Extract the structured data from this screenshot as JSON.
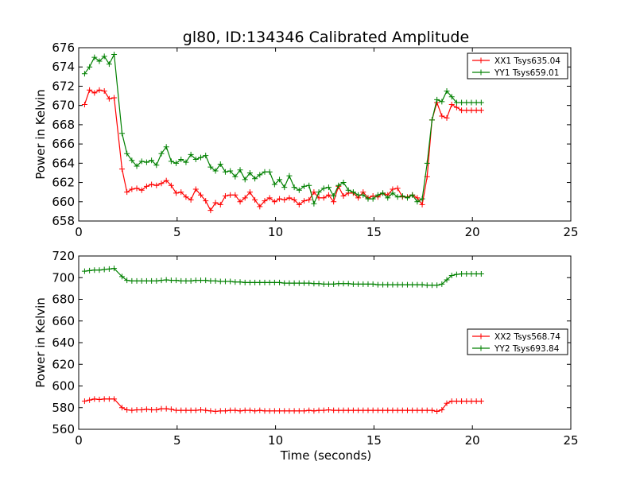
{
  "chart_data": [
    {
      "type": "line",
      "title": "gl80, ID:134346 Calibrated Amplitude",
      "xlabel": "",
      "ylabel": "Power in Kelvin",
      "xlim": [
        0,
        25
      ],
      "ylim": [
        658,
        676
      ],
      "xticks": [
        "0",
        "5",
        "10",
        "15",
        "20",
        "25"
      ],
      "yticks": [
        "658",
        "660",
        "662",
        "664",
        "666",
        "668",
        "670",
        "672",
        "674",
        "676"
      ],
      "legend_position": "top-right",
      "series": [
        {
          "name": "XX1 Tsys635.04",
          "color": "#ff0000",
          "x": [
            0.3,
            0.55,
            0.8,
            1.05,
            1.3,
            1.55,
            1.8,
            2.2,
            2.45,
            2.7,
            2.95,
            3.2,
            3.45,
            3.7,
            3.95,
            4.2,
            4.45,
            4.7,
            4.95,
            5.2,
            5.45,
            5.7,
            5.95,
            6.2,
            6.45,
            6.7,
            6.95,
            7.2,
            7.45,
            7.7,
            7.95,
            8.2,
            8.45,
            8.7,
            8.95,
            9.2,
            9.45,
            9.7,
            9.95,
            10.2,
            10.45,
            10.7,
            10.95,
            11.2,
            11.45,
            11.7,
            11.95,
            12.2,
            12.45,
            12.7,
            12.95,
            13.2,
            13.45,
            13.7,
            13.95,
            14.2,
            14.45,
            14.7,
            14.95,
            15.2,
            15.45,
            15.7,
            15.95,
            16.2,
            16.45,
            16.7,
            16.95,
            17.2,
            17.45,
            17.7,
            17.95,
            18.2,
            18.45,
            18.7,
            18.95,
            19.2,
            19.45,
            19.7,
            19.95,
            20.2,
            20.45
          ],
          "y": [
            670.1,
            671.6,
            671.3,
            671.6,
            671.5,
            670.7,
            670.8,
            663.4,
            661.0,
            661.3,
            661.4,
            661.2,
            661.6,
            661.8,
            661.7,
            661.9,
            662.2,
            661.7,
            660.9,
            661.0,
            660.5,
            660.2,
            661.3,
            660.7,
            660.1,
            659.1,
            659.9,
            659.7,
            660.6,
            660.7,
            660.7,
            660.0,
            660.4,
            661.0,
            660.2,
            659.5,
            660.1,
            660.4,
            660.0,
            660.3,
            660.2,
            660.4,
            660.2,
            659.7,
            660.1,
            660.2,
            661.0,
            660.4,
            660.4,
            660.7,
            660.0,
            661.6,
            660.6,
            660.9,
            660.9,
            660.4,
            661.0,
            660.4,
            660.6,
            660.5,
            660.9,
            660.7,
            661.3,
            661.4,
            660.5,
            660.5,
            660.7,
            660.4,
            659.7,
            662.6,
            668.5,
            670.3,
            668.9,
            668.7,
            670.1,
            669.8,
            669.5,
            669.5,
            669.5,
            669.5,
            669.5
          ]
        },
        {
          "name": "YY1 Tsys659.01",
          "color": "#008000",
          "x": [
            0.3,
            0.55,
            0.8,
            1.05,
            1.3,
            1.55,
            1.8,
            2.2,
            2.45,
            2.7,
            2.95,
            3.2,
            3.45,
            3.7,
            3.95,
            4.2,
            4.45,
            4.7,
            4.95,
            5.2,
            5.45,
            5.7,
            5.95,
            6.2,
            6.45,
            6.7,
            6.95,
            7.2,
            7.45,
            7.7,
            7.95,
            8.2,
            8.45,
            8.7,
            8.95,
            9.2,
            9.45,
            9.7,
            9.95,
            10.2,
            10.45,
            10.7,
            10.95,
            11.2,
            11.45,
            11.7,
            11.95,
            12.2,
            12.45,
            12.7,
            12.95,
            13.2,
            13.45,
            13.7,
            13.95,
            14.2,
            14.45,
            14.7,
            14.95,
            15.2,
            15.45,
            15.7,
            15.95,
            16.2,
            16.45,
            16.7,
            16.95,
            17.2,
            17.45,
            17.7,
            17.95,
            18.2,
            18.45,
            18.7,
            18.95,
            19.2,
            19.45,
            19.7,
            19.95,
            20.2,
            20.45
          ],
          "y": [
            673.3,
            674.0,
            675.0,
            674.6,
            675.1,
            674.3,
            675.3,
            667.1,
            665.0,
            664.3,
            663.7,
            664.2,
            664.1,
            664.3,
            663.8,
            665.0,
            665.7,
            664.2,
            664.0,
            664.4,
            664.1,
            664.9,
            664.4,
            664.6,
            664.8,
            663.6,
            663.2,
            663.9,
            663.1,
            663.2,
            662.6,
            663.3,
            662.3,
            663.0,
            662.4,
            662.8,
            663.1,
            663.1,
            661.8,
            662.3,
            661.5,
            662.7,
            661.5,
            661.2,
            661.6,
            661.7,
            659.8,
            661.0,
            661.4,
            661.5,
            660.6,
            661.7,
            662.0,
            661.2,
            661.0,
            660.7,
            660.7,
            660.3,
            660.3,
            660.7,
            660.9,
            660.4,
            660.9,
            660.5,
            660.6,
            660.4,
            660.7,
            660.0,
            660.3,
            664.0,
            668.5,
            670.6,
            670.4,
            671.5,
            670.9,
            670.3,
            670.3,
            670.3,
            670.3,
            670.3,
            670.3
          ]
        }
      ]
    },
    {
      "type": "line",
      "title": "",
      "xlabel": "Time (seconds)",
      "ylabel": "Power in Kelvin",
      "xlim": [
        0,
        25
      ],
      "ylim": [
        560,
        720
      ],
      "xticks": [
        "0",
        "5",
        "10",
        "15",
        "20",
        "25"
      ],
      "yticks": [
        "560",
        "580",
        "600",
        "620",
        "640",
        "660",
        "680",
        "700",
        "720"
      ],
      "legend_position": "center-right",
      "series": [
        {
          "name": "XX2 Tsys568.74",
          "color": "#ff0000",
          "x": [
            0.3,
            0.55,
            0.8,
            1.05,
            1.3,
            1.55,
            1.8,
            2.2,
            2.45,
            2.7,
            2.95,
            3.2,
            3.45,
            3.7,
            3.95,
            4.2,
            4.45,
            4.7,
            4.95,
            5.2,
            5.45,
            5.7,
            5.95,
            6.2,
            6.45,
            6.7,
            6.95,
            7.2,
            7.45,
            7.7,
            7.95,
            8.2,
            8.45,
            8.7,
            8.95,
            9.2,
            9.45,
            9.7,
            9.95,
            10.2,
            10.45,
            10.7,
            10.95,
            11.2,
            11.45,
            11.7,
            11.95,
            12.2,
            12.45,
            12.7,
            12.95,
            13.2,
            13.45,
            13.7,
            13.95,
            14.2,
            14.45,
            14.7,
            14.95,
            15.2,
            15.45,
            15.7,
            15.95,
            16.2,
            16.45,
            16.7,
            16.95,
            17.2,
            17.45,
            17.7,
            17.95,
            18.2,
            18.45,
            18.7,
            18.95,
            19.2,
            19.45,
            19.7,
            19.95,
            20.2,
            20.45
          ],
          "y": [
            586,
            587,
            588,
            587.5,
            588,
            588,
            588,
            580,
            578,
            577.5,
            578,
            578,
            578.5,
            578,
            578,
            579,
            579,
            578.5,
            577.5,
            577.5,
            577.5,
            577.5,
            577.5,
            578,
            577.5,
            577,
            576.5,
            577,
            577,
            577.5,
            577.5,
            577,
            577.5,
            577.5,
            577,
            577.5,
            577,
            577,
            577,
            577,
            577,
            577,
            577,
            577,
            577,
            577.5,
            577,
            577.5,
            577.5,
            578,
            577.5,
            577.5,
            577.5,
            577.5,
            577.5,
            577.5,
            577.5,
            577.5,
            577.5,
            577.5,
            577.5,
            577.5,
            577.5,
            577.5,
            577.5,
            577.5,
            577.5,
            577.5,
            577.5,
            577.5,
            577.5,
            576.5,
            578,
            584,
            586,
            586,
            586,
            586,
            586,
            586,
            586
          ]
        },
        {
          "name": "YY2 Tsys693.84",
          "color": "#008000",
          "x": [
            0.3,
            0.55,
            0.8,
            1.05,
            1.3,
            1.55,
            1.8,
            2.2,
            2.45,
            2.7,
            2.95,
            3.2,
            3.45,
            3.7,
            3.95,
            4.2,
            4.45,
            4.7,
            4.95,
            5.2,
            5.45,
            5.7,
            5.95,
            6.2,
            6.45,
            6.7,
            6.95,
            7.2,
            7.45,
            7.7,
            7.95,
            8.2,
            8.45,
            8.7,
            8.95,
            9.2,
            9.45,
            9.7,
            9.95,
            10.2,
            10.45,
            10.7,
            10.95,
            11.2,
            11.45,
            11.7,
            11.95,
            12.2,
            12.45,
            12.7,
            12.95,
            13.2,
            13.45,
            13.7,
            13.95,
            14.2,
            14.45,
            14.7,
            14.95,
            15.2,
            15.45,
            15.7,
            15.95,
            16.2,
            16.45,
            16.7,
            16.95,
            17.2,
            17.45,
            17.7,
            17.95,
            18.2,
            18.45,
            18.7,
            18.95,
            19.2,
            19.45,
            19.7,
            19.95,
            20.2,
            20.45
          ],
          "y": [
            706,
            706.5,
            707,
            707,
            707.5,
            708,
            708.5,
            701,
            697.5,
            697,
            697,
            697,
            697,
            697,
            697,
            697.5,
            698,
            697.5,
            697.5,
            697,
            697,
            697,
            697.5,
            697.5,
            697.5,
            697,
            697,
            696.5,
            696.5,
            696.5,
            696,
            696,
            695.5,
            695.5,
            695.5,
            695.5,
            695.5,
            695.5,
            695.5,
            695.5,
            695,
            695,
            695,
            695,
            695,
            695,
            694.5,
            694.5,
            694,
            694,
            694,
            694.5,
            694.5,
            694.5,
            694,
            694,
            694,
            694,
            694,
            693.5,
            693.5,
            693.5,
            693.5,
            693.5,
            693.5,
            693.5,
            693.5,
            693.5,
            693.5,
            693,
            693,
            693,
            694,
            698,
            702,
            703,
            703.5,
            703.5,
            703.5,
            703.5,
            703.5
          ]
        }
      ]
    }
  ]
}
